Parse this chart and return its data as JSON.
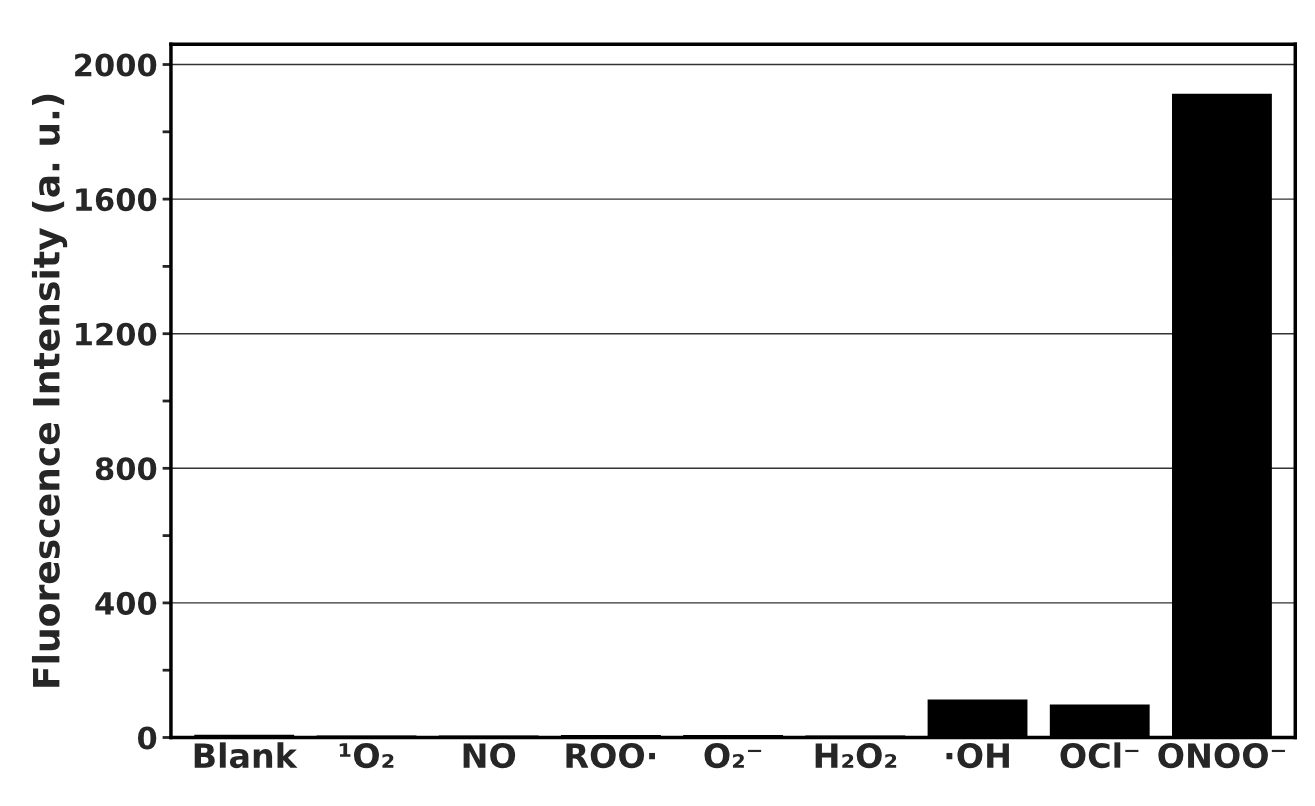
{
  "chart_data": {
    "type": "bar",
    "ylabel": "Fluorescence Intensity (a. u.)",
    "categories": [
      "Blank",
      "¹O₂",
      "NO",
      "ROO·",
      "O₂⁻",
      "H₂O₂",
      "·OH",
      "OCl⁻",
      "ONOO⁻"
    ],
    "values": [
      5,
      3,
      3,
      4,
      4,
      3,
      110,
      95,
      1910
    ],
    "color": "#000000",
    "ylim": [
      0,
      2060
    ],
    "yticks": [
      0,
      {
        "value": 200,
        "label": null
      },
      400,
      {
        "value": 600,
        "label": null
      },
      800,
      {
        "value": 1000,
        "label": null
      },
      1200,
      {
        "value": 1400,
        "label": null
      },
      1600,
      {
        "value": 1800,
        "label": null
      },
      2000
    ],
    "grid": "y"
  }
}
